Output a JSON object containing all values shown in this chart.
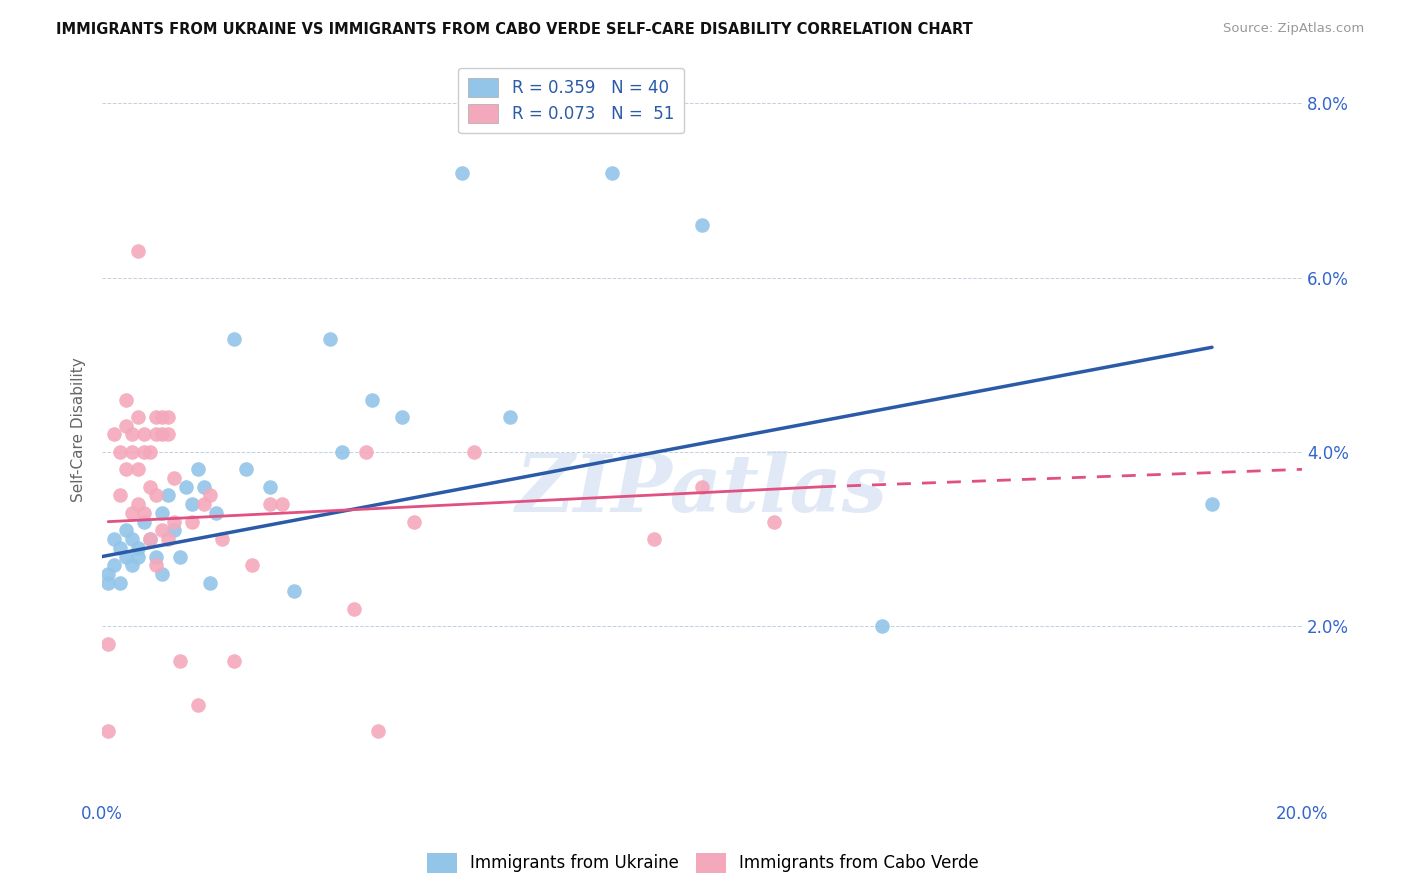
{
  "title": "IMMIGRANTS FROM UKRAINE VS IMMIGRANTS FROM CABO VERDE SELF-CARE DISABILITY CORRELATION CHART",
  "source": "Source: ZipAtlas.com",
  "ylabel": "Self-Care Disability",
  "xlim": [
    0.0,
    0.2
  ],
  "ylim": [
    0.0,
    0.085
  ],
  "xtick_positions": [
    0.0,
    0.04,
    0.08,
    0.12,
    0.16,
    0.2
  ],
  "xtick_labels": [
    "0.0%",
    "",
    "",
    "",
    "",
    "20.0%"
  ],
  "ytick_positions": [
    0.0,
    0.02,
    0.04,
    0.06,
    0.08
  ],
  "ytick_labels": [
    "",
    "2.0%",
    "4.0%",
    "6.0%",
    "8.0%"
  ],
  "ukraine_color": "#92C5E8",
  "cabo_color": "#F4A8BC",
  "ukraine_line_color": "#2B5BA8",
  "cabo_line_color": "#E05080",
  "R_ukraine": 0.359,
  "N_ukraine": 40,
  "R_cabo": 0.073,
  "N_cabo": 51,
  "watermark": "ZIPatlas",
  "ukraine_line": {
    "x0": 0.0,
    "y0": 0.028,
    "x1": 0.185,
    "y1": 0.052
  },
  "cabo_line_solid": {
    "x0": 0.001,
    "y0": 0.032,
    "x1": 0.12,
    "y1": 0.036
  },
  "cabo_line_dash": {
    "x0": 0.12,
    "y0": 0.036,
    "x1": 0.2,
    "y1": 0.038
  },
  "ukraine_points": [
    [
      0.001,
      0.026
    ],
    [
      0.001,
      0.025
    ],
    [
      0.002,
      0.027
    ],
    [
      0.002,
      0.03
    ],
    [
      0.003,
      0.025
    ],
    [
      0.003,
      0.029
    ],
    [
      0.004,
      0.028
    ],
    [
      0.004,
      0.031
    ],
    [
      0.005,
      0.027
    ],
    [
      0.005,
      0.03
    ],
    [
      0.006,
      0.029
    ],
    [
      0.006,
      0.028
    ],
    [
      0.007,
      0.032
    ],
    [
      0.008,
      0.03
    ],
    [
      0.009,
      0.028
    ],
    [
      0.01,
      0.033
    ],
    [
      0.01,
      0.026
    ],
    [
      0.011,
      0.035
    ],
    [
      0.012,
      0.031
    ],
    [
      0.013,
      0.028
    ],
    [
      0.014,
      0.036
    ],
    [
      0.015,
      0.034
    ],
    [
      0.016,
      0.038
    ],
    [
      0.017,
      0.036
    ],
    [
      0.018,
      0.025
    ],
    [
      0.019,
      0.033
    ],
    [
      0.022,
      0.053
    ],
    [
      0.024,
      0.038
    ],
    [
      0.028,
      0.036
    ],
    [
      0.032,
      0.024
    ],
    [
      0.038,
      0.053
    ],
    [
      0.04,
      0.04
    ],
    [
      0.045,
      0.046
    ],
    [
      0.05,
      0.044
    ],
    [
      0.06,
      0.072
    ],
    [
      0.068,
      0.044
    ],
    [
      0.085,
      0.072
    ],
    [
      0.1,
      0.066
    ],
    [
      0.13,
      0.02
    ],
    [
      0.185,
      0.034
    ]
  ],
  "cabo_points": [
    [
      0.001,
      0.018
    ],
    [
      0.002,
      0.042
    ],
    [
      0.003,
      0.035
    ],
    [
      0.003,
      0.04
    ],
    [
      0.004,
      0.038
    ],
    [
      0.004,
      0.043
    ],
    [
      0.004,
      0.046
    ],
    [
      0.005,
      0.033
    ],
    [
      0.005,
      0.04
    ],
    [
      0.005,
      0.042
    ],
    [
      0.006,
      0.034
    ],
    [
      0.006,
      0.038
    ],
    [
      0.006,
      0.044
    ],
    [
      0.006,
      0.063
    ],
    [
      0.007,
      0.033
    ],
    [
      0.007,
      0.04
    ],
    [
      0.007,
      0.042
    ],
    [
      0.008,
      0.03
    ],
    [
      0.008,
      0.036
    ],
    [
      0.008,
      0.04
    ],
    [
      0.009,
      0.027
    ],
    [
      0.009,
      0.035
    ],
    [
      0.009,
      0.042
    ],
    [
      0.009,
      0.044
    ],
    [
      0.01,
      0.031
    ],
    [
      0.01,
      0.042
    ],
    [
      0.01,
      0.044
    ],
    [
      0.011,
      0.03
    ],
    [
      0.011,
      0.042
    ],
    [
      0.011,
      0.044
    ],
    [
      0.012,
      0.032
    ],
    [
      0.012,
      0.037
    ],
    [
      0.013,
      0.016
    ],
    [
      0.015,
      0.032
    ],
    [
      0.016,
      0.011
    ],
    [
      0.017,
      0.034
    ],
    [
      0.018,
      0.035
    ],
    [
      0.02,
      0.03
    ],
    [
      0.022,
      0.016
    ],
    [
      0.025,
      0.027
    ],
    [
      0.028,
      0.034
    ],
    [
      0.03,
      0.034
    ],
    [
      0.042,
      0.022
    ],
    [
      0.044,
      0.04
    ],
    [
      0.046,
      0.008
    ],
    [
      0.052,
      0.032
    ],
    [
      0.062,
      0.04
    ],
    [
      0.092,
      0.03
    ],
    [
      0.1,
      0.036
    ],
    [
      0.112,
      0.032
    ],
    [
      0.001,
      0.008
    ]
  ]
}
